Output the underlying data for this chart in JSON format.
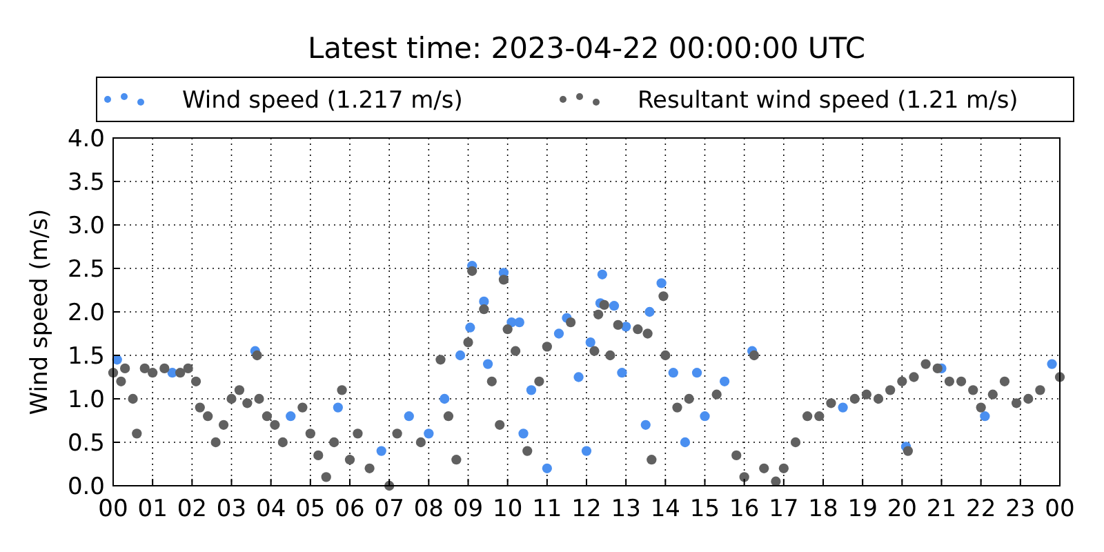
{
  "chart_data": {
    "type": "scatter",
    "title": "Latest time: 2023-04-22 00:00:00 UTC",
    "ylabel": "Wind speed (m/s)",
    "legend": "top",
    "grid": true,
    "marker": "circle",
    "xlim": [
      0,
      24
    ],
    "xticks": [
      {
        "value": 0,
        "label": "00"
      },
      {
        "value": 1,
        "label": "01"
      },
      {
        "value": 2,
        "label": "02"
      },
      {
        "value": 3,
        "label": "03"
      },
      {
        "value": 4,
        "label": "04"
      },
      {
        "value": 5,
        "label": "05"
      },
      {
        "value": 6,
        "label": "06"
      },
      {
        "value": 7,
        "label": "07"
      },
      {
        "value": 8,
        "label": "08"
      },
      {
        "value": 9,
        "label": "09"
      },
      {
        "value": 10,
        "label": "10"
      },
      {
        "value": 11,
        "label": "11"
      },
      {
        "value": 12,
        "label": "12"
      },
      {
        "value": 13,
        "label": "13"
      },
      {
        "value": 14,
        "label": "14"
      },
      {
        "value": 15,
        "label": "15"
      },
      {
        "value": 16,
        "label": "16"
      },
      {
        "value": 17,
        "label": "17"
      },
      {
        "value": 18,
        "label": "18"
      },
      {
        "value": 19,
        "label": "19"
      },
      {
        "value": 20,
        "label": "20"
      },
      {
        "value": 21,
        "label": "21"
      },
      {
        "value": 22,
        "label": "22"
      },
      {
        "value": 23,
        "label": "23"
      },
      {
        "value": 24,
        "label": "00"
      }
    ],
    "ylim": [
      0,
      4
    ],
    "yticks": [
      {
        "value": 0,
        "label": "0.0"
      },
      {
        "value": 0.5,
        "label": "0.5"
      },
      {
        "value": 1,
        "label": "1.0"
      },
      {
        "value": 1.5,
        "label": "1.5"
      },
      {
        "value": 2,
        "label": "2.0"
      },
      {
        "value": 2.5,
        "label": "2.5"
      },
      {
        "value": 3,
        "label": "3.0"
      },
      {
        "value": 3.5,
        "label": "3.5"
      },
      {
        "value": 4,
        "label": "4.0"
      }
    ],
    "series": [
      {
        "name": "Wind speed (1.217 m/s)",
        "color": "#4a8ff0",
        "x": [
          0.1,
          1.5,
          3.6,
          4.5,
          5.7,
          6.8,
          7.5,
          8.0,
          8.4,
          8.8,
          9.05,
          9.1,
          9.4,
          9.5,
          9.9,
          10.1,
          10.3,
          10.4,
          10.6,
          11.0,
          11.3,
          11.5,
          11.8,
          12.0,
          12.1,
          12.35,
          12.4,
          12.7,
          12.9,
          13.0,
          13.5,
          13.6,
          13.9,
          14.2,
          14.5,
          14.8,
          15.0,
          15.5,
          16.2,
          18.5,
          20.1,
          21.0,
          22.1,
          23.8
        ],
        "values": [
          1.45,
          1.3,
          1.55,
          0.8,
          0.9,
          0.4,
          0.8,
          0.6,
          1.0,
          1.5,
          1.82,
          2.53,
          2.12,
          1.4,
          2.45,
          1.88,
          1.88,
          0.6,
          1.1,
          0.2,
          1.75,
          1.93,
          1.25,
          0.4,
          1.65,
          2.1,
          2.43,
          2.07,
          1.3,
          1.83,
          0.7,
          2.0,
          2.33,
          1.3,
          0.5,
          1.3,
          0.8,
          1.2,
          1.55,
          0.9,
          0.45,
          1.35,
          0.8,
          1.4
        ]
      },
      {
        "name": "Resultant wind speed (1.21 m/s)",
        "color": "#606060",
        "x": [
          0.0,
          0.2,
          0.3,
          0.5,
          0.6,
          0.8,
          1.0,
          1.3,
          1.7,
          1.9,
          2.1,
          2.2,
          2.4,
          2.6,
          2.8,
          3.0,
          3.2,
          3.4,
          3.65,
          3.7,
          3.9,
          4.1,
          4.3,
          4.8,
          5.0,
          5.2,
          5.4,
          5.6,
          5.8,
          6.0,
          6.2,
          6.5,
          7.0,
          7.2,
          7.8,
          8.3,
          8.5,
          8.7,
          9.0,
          9.1,
          9.4,
          9.6,
          9.8,
          9.9,
          10.0,
          10.2,
          10.5,
          10.8,
          11.0,
          11.6,
          12.2,
          12.3,
          12.45,
          12.6,
          12.8,
          13.3,
          13.55,
          13.65,
          13.95,
          14.0,
          14.3,
          14.6,
          15.3,
          15.8,
          16.0,
          16.25,
          16.5,
          16.8,
          17.0,
          17.3,
          17.6,
          17.9,
          18.2,
          18.8,
          19.1,
          19.4,
          19.7,
          20.0,
          20.15,
          20.3,
          20.6,
          20.9,
          21.2,
          21.5,
          21.8,
          22.0,
          22.3,
          22.6,
          22.9,
          23.2,
          23.5,
          24.0
        ],
        "values": [
          1.3,
          1.2,
          1.35,
          1.0,
          0.6,
          1.35,
          1.3,
          1.35,
          1.3,
          1.35,
          1.2,
          0.9,
          0.8,
          0.5,
          0.7,
          1.0,
          1.1,
          0.95,
          1.5,
          1.0,
          0.8,
          0.7,
          0.5,
          0.9,
          0.6,
          0.35,
          0.1,
          0.5,
          1.1,
          0.3,
          0.6,
          0.2,
          0.0,
          0.6,
          0.5,
          1.45,
          0.8,
          0.3,
          1.65,
          2.47,
          2.03,
          1.2,
          0.7,
          2.37,
          1.8,
          1.55,
          0.4,
          1.2,
          1.6,
          1.88,
          1.55,
          1.97,
          2.08,
          1.5,
          1.85,
          1.8,
          1.75,
          0.3,
          2.18,
          1.5,
          0.9,
          1.0,
          1.05,
          0.35,
          0.1,
          1.5,
          0.2,
          0.05,
          0.2,
          0.5,
          0.8,
          0.8,
          0.95,
          1.0,
          1.05,
          1.0,
          1.1,
          1.2,
          0.4,
          1.25,
          1.4,
          1.35,
          1.2,
          1.2,
          1.1,
          0.9,
          1.05,
          1.2,
          0.95,
          1.0,
          1.1,
          1.25
        ]
      }
    ]
  }
}
